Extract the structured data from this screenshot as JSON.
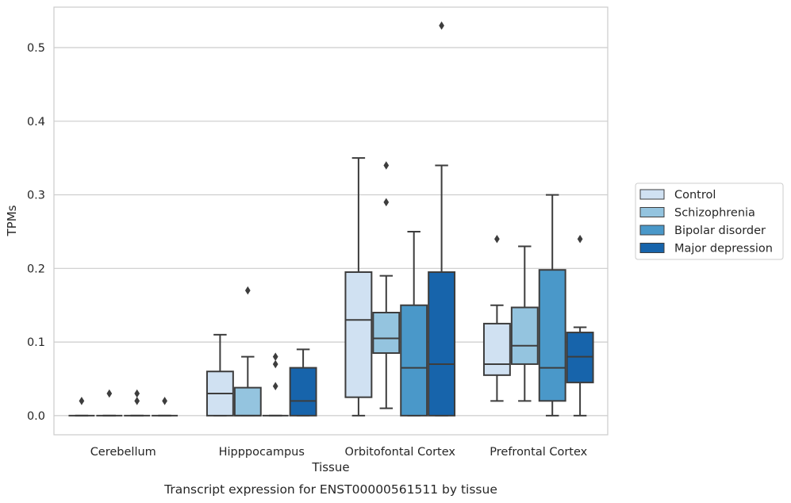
{
  "chart_data": {
    "type": "box",
    "xlabel": "Tissue",
    "ylabel": "TPMs",
    "caption": "Transcript expression for ENST00000561511 by tissue",
    "ylim": [
      -0.026,
      0.555
    ],
    "yticks": [
      0.0,
      0.1,
      0.2,
      0.3,
      0.4,
      0.5
    ],
    "ytick_labels": [
      "0.0",
      "0.1",
      "0.2",
      "0.3",
      "0.4",
      "0.5"
    ],
    "grid": "horizontal",
    "legend_position": "right",
    "categories": [
      "Cerebellum",
      "Hipppocampus",
      "Orbitofontal Cortex",
      "Prefrontal Cortex"
    ],
    "series": [
      {
        "name": "Control",
        "color": "#d0e1f2",
        "boxes": [
          {
            "whislo": 0,
            "q1": 0,
            "med": 0,
            "q3": 0,
            "whishi": 0,
            "fliers": [
              0.02
            ]
          },
          {
            "whislo": 0,
            "q1": 0,
            "med": 0.03,
            "q3": 0.06,
            "whishi": 0.11,
            "fliers": []
          },
          {
            "whislo": 0,
            "q1": 0.025,
            "med": 0.13,
            "q3": 0.195,
            "whishi": 0.35,
            "fliers": []
          },
          {
            "whislo": 0.02,
            "q1": 0.055,
            "med": 0.07,
            "q3": 0.125,
            "whishi": 0.15,
            "fliers": [
              0.24
            ]
          }
        ]
      },
      {
        "name": "Schizophrenia",
        "color": "#94c4df",
        "boxes": [
          {
            "whislo": 0,
            "q1": 0,
            "med": 0,
            "q3": 0,
            "whishi": 0,
            "fliers": [
              0.03
            ]
          },
          {
            "whislo": 0,
            "q1": 0,
            "med": 0,
            "q3": 0.038,
            "whishi": 0.08,
            "fliers": [
              0.17
            ]
          },
          {
            "whislo": 0.01,
            "q1": 0.085,
            "med": 0.105,
            "q3": 0.14,
            "whishi": 0.19,
            "fliers": [
              0.29,
              0.34
            ]
          },
          {
            "whislo": 0.02,
            "q1": 0.07,
            "med": 0.095,
            "q3": 0.147,
            "whishi": 0.23,
            "fliers": []
          }
        ]
      },
      {
        "name": "Bipolar disorder",
        "color": "#4a98c9",
        "boxes": [
          {
            "whislo": 0,
            "q1": 0,
            "med": 0,
            "q3": 0,
            "whishi": 0,
            "fliers": [
              0.02,
              0.03
            ]
          },
          {
            "whislo": 0,
            "q1": 0,
            "med": 0,
            "q3": 0,
            "whishi": 0,
            "fliers": [
              0.04,
              0.07,
              0.08
            ]
          },
          {
            "whislo": 0,
            "q1": 0,
            "med": 0.065,
            "q3": 0.15,
            "whishi": 0.25,
            "fliers": []
          },
          {
            "whislo": 0,
            "q1": 0.02,
            "med": 0.065,
            "q3": 0.198,
            "whishi": 0.3,
            "fliers": []
          }
        ]
      },
      {
        "name": "Major depression",
        "color": "#1764ab",
        "boxes": [
          {
            "whislo": 0,
            "q1": 0,
            "med": 0,
            "q3": 0,
            "whishi": 0,
            "fliers": [
              0.02
            ]
          },
          {
            "whislo": 0,
            "q1": 0,
            "med": 0.02,
            "q3": 0.065,
            "whishi": 0.09,
            "fliers": []
          },
          {
            "whislo": 0,
            "q1": 0,
            "med": 0.07,
            "q3": 0.195,
            "whishi": 0.34,
            "fliers": [
              0.53
            ]
          },
          {
            "whislo": 0,
            "q1": 0.045,
            "med": 0.08,
            "q3": 0.113,
            "whishi": 0.12,
            "fliers": [
              0.24
            ]
          }
        ]
      }
    ]
  }
}
